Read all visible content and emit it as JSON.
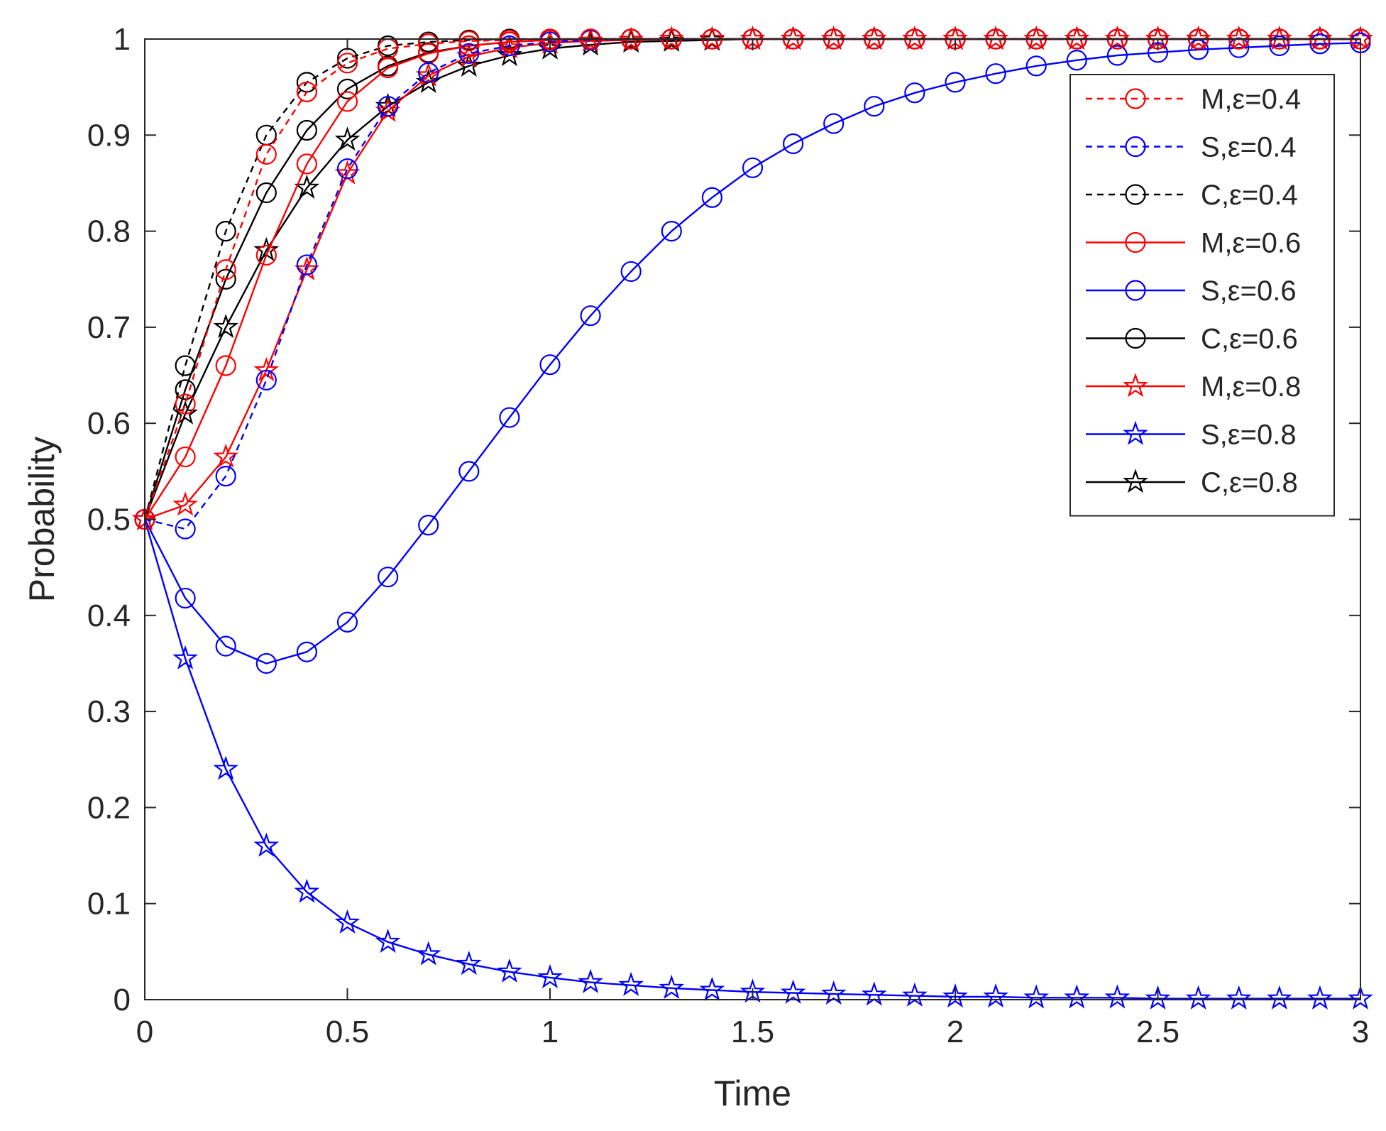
{
  "chart_data": {
    "type": "line",
    "title": "",
    "xlabel": "Time",
    "ylabel": "Probability",
    "xlim": [
      0,
      3
    ],
    "ylim": [
      0,
      1
    ],
    "xticks": [
      0,
      0.5,
      1,
      1.5,
      2,
      2.5,
      3
    ],
    "xtick_labels": [
      "0",
      "0.5",
      "1",
      "1.5",
      "2",
      "2.5",
      "3"
    ],
    "yticks": [
      0,
      0.1,
      0.2,
      0.3,
      0.4,
      0.5,
      0.6,
      0.7,
      0.8,
      0.9,
      1
    ],
    "ytick_labels": [
      "0",
      "0.1",
      "0.2",
      "0.3",
      "0.4",
      "0.5",
      "0.6",
      "0.7",
      "0.8",
      "0.9",
      "1"
    ],
    "grid": false,
    "legend_position": "top-right",
    "x": [
      0,
      0.1,
      0.2,
      0.3,
      0.4,
      0.5,
      0.6,
      0.7,
      0.8,
      0.9,
      1.0,
      1.1,
      1.2,
      1.3,
      1.4,
      1.5,
      1.6,
      1.7,
      1.8,
      1.9,
      2.0,
      2.1,
      2.2,
      2.3,
      2.4,
      2.5,
      2.6,
      2.7,
      2.8,
      2.9,
      3.0
    ],
    "series": [
      {
        "name": "M,ε=0.4",
        "color": "#ff0000",
        "dash": "dashed",
        "marker": "circle",
        "values": [
          0.5,
          0.62,
          0.76,
          0.88,
          0.945,
          0.975,
          0.99,
          0.995,
          0.998,
          0.999,
          1,
          1,
          1,
          1,
          1,
          1,
          1,
          1,
          1,
          1,
          1,
          1,
          1,
          1,
          1,
          1,
          1,
          1,
          1,
          1,
          1
        ]
      },
      {
        "name": "S,ε=0.4",
        "color": "#0000ff",
        "dash": "dashed",
        "marker": "circle",
        "values": [
          0.5,
          0.49,
          0.545,
          0.645,
          0.765,
          0.865,
          0.93,
          0.965,
          0.985,
          0.993,
          0.997,
          0.999,
          1,
          1,
          1,
          1,
          1,
          1,
          1,
          1,
          1,
          1,
          1,
          1,
          1,
          1,
          1,
          1,
          1,
          1,
          1
        ]
      },
      {
        "name": "C,ε=0.4",
        "color": "#000000",
        "dash": "dashed",
        "marker": "circle",
        "values": [
          0.5,
          0.66,
          0.8,
          0.9,
          0.955,
          0.98,
          0.993,
          0.997,
          0.999,
          1,
          1,
          1,
          1,
          1,
          1,
          1,
          1,
          1,
          1,
          1,
          1,
          1,
          1,
          1,
          1,
          1,
          1,
          1,
          1,
          1,
          1
        ]
      },
      {
        "name": "M,ε=0.6",
        "color": "#ff0000",
        "dash": "solid",
        "marker": "circle",
        "values": [
          0.5,
          0.565,
          0.66,
          0.775,
          0.87,
          0.935,
          0.97,
          0.985,
          0.993,
          0.997,
          0.999,
          1,
          1,
          1,
          1,
          1,
          1,
          1,
          1,
          1,
          1,
          1,
          1,
          1,
          1,
          1,
          1,
          1,
          1,
          1,
          1
        ]
      },
      {
        "name": "S,ε=0.6",
        "color": "#0000ff",
        "dash": "solid",
        "marker": "circle",
        "values": [
          0.5,
          0.418,
          0.368,
          0.35,
          0.362,
          0.393,
          0.44,
          0.494,
          0.55,
          0.606,
          0.661,
          0.712,
          0.758,
          0.8,
          0.835,
          0.866,
          0.891,
          0.912,
          0.93,
          0.944,
          0.955,
          0.964,
          0.972,
          0.978,
          0.983,
          0.986,
          0.989,
          0.991,
          0.993,
          0.995,
          0.996
        ]
      },
      {
        "name": "C,ε=0.6",
        "color": "#000000",
        "dash": "solid",
        "marker": "circle",
        "values": [
          0.5,
          0.635,
          0.75,
          0.84,
          0.905,
          0.948,
          0.972,
          0.986,
          0.993,
          0.997,
          0.999,
          1,
          1,
          1,
          1,
          1,
          1,
          1,
          1,
          1,
          1,
          1,
          1,
          1,
          1,
          1,
          1,
          1,
          1,
          1,
          1
        ]
      },
      {
        "name": "M,ε=0.8",
        "color": "#ff0000",
        "dash": "solid",
        "marker": "star",
        "values": [
          0.5,
          0.515,
          0.565,
          0.655,
          0.76,
          0.86,
          0.925,
          0.962,
          0.982,
          0.991,
          0.996,
          0.998,
          0.999,
          1,
          1,
          1,
          1,
          1,
          1,
          1,
          1,
          1,
          1,
          1,
          1,
          1,
          1,
          1,
          1,
          1,
          1
        ]
      },
      {
        "name": "S,ε=0.8",
        "color": "#0000ff",
        "dash": "solid",
        "marker": "star",
        "values": [
          0.5,
          0.355,
          0.24,
          0.16,
          0.112,
          0.08,
          0.06,
          0.047,
          0.037,
          0.029,
          0.023,
          0.018,
          0.015,
          0.012,
          0.01,
          0.008,
          0.007,
          0.006,
          0.005,
          0.004,
          0.003,
          0.003,
          0.002,
          0.002,
          0.002,
          0.001,
          0.001,
          0.001,
          0.001,
          0.001,
          0.001
        ]
      },
      {
        "name": "C,ε=0.8",
        "color": "#000000",
        "dash": "solid",
        "marker": "star",
        "values": [
          0.5,
          0.61,
          0.7,
          0.78,
          0.845,
          0.895,
          0.93,
          0.955,
          0.972,
          0.983,
          0.99,
          0.994,
          0.997,
          0.998,
          0.999,
          1,
          1,
          1,
          1,
          1,
          1,
          1,
          1,
          1,
          1,
          1,
          1,
          1,
          1,
          1,
          1
        ]
      }
    ]
  }
}
